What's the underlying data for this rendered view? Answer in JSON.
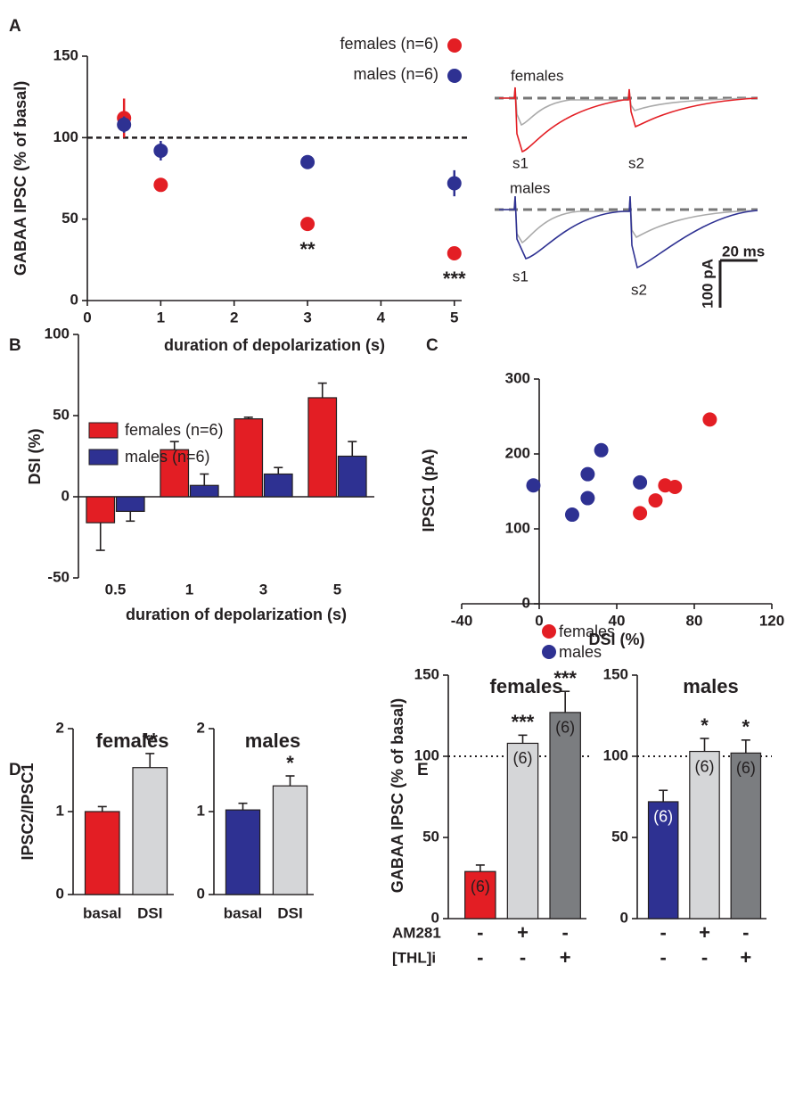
{
  "panels": [
    "A",
    "B",
    "C",
    "D",
    "E"
  ],
  "traces": {
    "groups": [
      "females",
      "males"
    ],
    "stimuli": [
      "s1",
      "s2",
      "s1",
      "s2"
    ],
    "scale_x": "20 ms",
    "scale_y": "100 pA"
  },
  "chart_data": [
    {
      "type": "scatter",
      "x_label": "duration of depolarization (s)",
      "y_label": "GABAA IPSC (% of basal)",
      "xlim": [
        0,
        5.1
      ],
      "xticks": [
        0,
        1,
        2,
        3,
        4,
        5
      ],
      "ylim": [
        0,
        150
      ],
      "yticks": [
        0,
        50,
        100,
        150
      ],
      "reference_line": 100,
      "reference_style": "dashed",
      "legend": "top",
      "series": [
        {
          "name": "females (n=6)",
          "color": "#e31e24",
          "x": [
            0.5,
            1,
            3,
            5
          ],
          "values": [
            112,
            71,
            47,
            29
          ],
          "errors": [
            12,
            3,
            3,
            3
          ]
        },
        {
          "name": "males (n=6)",
          "color": "#2e3192",
          "x": [
            0.5,
            1,
            3,
            5
          ],
          "values": [
            108,
            92,
            85,
            72
          ],
          "errors": [
            5,
            6,
            2,
            8
          ]
        }
      ],
      "annotations": [
        {
          "series": 0,
          "index": 2,
          "text": "**"
        },
        {
          "series": 0,
          "index": 3,
          "text": "***"
        }
      ]
    },
    {
      "type": "bar",
      "x_label": "duration of depolarization (s)",
      "y_label": "DSI (%)",
      "categories": [
        "0.5",
        "1",
        "3",
        "5"
      ],
      "ylim": [
        -50,
        100
      ],
      "yticks": [
        -50,
        0,
        50,
        100
      ],
      "legend": "upper left",
      "series": [
        {
          "name": "females (n=6)",
          "color": "#e31e24",
          "values": [
            -16,
            29,
            48,
            61
          ],
          "errors": [
            17,
            5,
            1,
            9
          ]
        },
        {
          "name": "males (n=6)",
          "color": "#2e3192",
          "values": [
            -9,
            7,
            14,
            25
          ],
          "errors": [
            6,
            7,
            4,
            9
          ]
        }
      ]
    },
    {
      "type": "scatter",
      "x_label": "DSI (%)",
      "y_label": "IPSC1 (pA)",
      "xlim": [
        -40,
        120
      ],
      "xticks": [
        -40,
        0,
        40,
        80,
        120
      ],
      "ylim": [
        0,
        300
      ],
      "yticks": [
        0,
        100,
        200,
        300
      ],
      "legend": "lower left",
      "series": [
        {
          "name": "females",
          "color": "#e31e24",
          "x": [
            88,
            65,
            70,
            60,
            52
          ],
          "values": [
            246,
            158,
            156,
            138,
            121
          ]
        },
        {
          "name": "males",
          "color": "#2e3192",
          "x": [
            -3,
            32,
            25,
            52,
            25,
            17
          ],
          "values": [
            158,
            205,
            173,
            162,
            141,
            119
          ]
        }
      ]
    },
    {
      "type": "bar",
      "title": "females",
      "y_label": "IPSC2/IPSC1",
      "categories": [
        "basal",
        "DSI"
      ],
      "values": [
        1.0,
        1.53
      ],
      "errors": [
        0.06,
        0.17
      ],
      "colors": [
        "#e31e24",
        "#d5d6d8"
      ],
      "ylim": [
        0,
        2
      ],
      "yticks": [
        0,
        1,
        2
      ],
      "annotations": [
        {
          "index": 1,
          "text": "**"
        }
      ]
    },
    {
      "type": "bar",
      "title": "males",
      "categories": [
        "basal",
        "DSI"
      ],
      "values": [
        1.02,
        1.31
      ],
      "errors": [
        0.08,
        0.12
      ],
      "colors": [
        "#2e3192",
        "#d5d6d8"
      ],
      "ylim": [
        0,
        2
      ],
      "yticks": [
        0,
        1,
        2
      ],
      "annotations": [
        {
          "index": 1,
          "text": "*"
        }
      ]
    },
    {
      "type": "bar",
      "title": "females",
      "y_label": "GABAA IPSC (% of basal)",
      "values": [
        29,
        108,
        127
      ],
      "errors": [
        4,
        5,
        13
      ],
      "colors": [
        "#e31e24",
        "#d5d6d8",
        "#7b7d80"
      ],
      "n_labels": [
        "(6)",
        "(6)",
        "(6)"
      ],
      "ylim": [
        0,
        150
      ],
      "yticks": [
        0,
        50,
        100,
        150
      ],
      "reference_line": 100,
      "reference_style": "dotted",
      "annotations": [
        {
          "index": 1,
          "text": "***"
        },
        {
          "index": 2,
          "text": "***"
        }
      ],
      "condition_rows": [
        {
          "name": "AM281",
          "signs": [
            "-",
            "+",
            "-"
          ]
        },
        {
          "name": "[THL]i",
          "signs": [
            "-",
            "-",
            "+"
          ]
        }
      ]
    },
    {
      "type": "bar",
      "title": "males",
      "values": [
        72,
        103,
        102
      ],
      "errors": [
        7,
        8,
        8
      ],
      "colors": [
        "#2e3192",
        "#d5d6d8",
        "#7b7d80"
      ],
      "n_labels": [
        "(6)",
        "(6)",
        "(6)"
      ],
      "ylim": [
        0,
        150
      ],
      "yticks": [
        0,
        50,
        100,
        150
      ],
      "reference_line": 100,
      "reference_style": "dotted",
      "annotations": [
        {
          "index": 1,
          "text": "*"
        },
        {
          "index": 2,
          "text": "*"
        }
      ],
      "condition_rows": [
        {
          "signs": [
            "-",
            "+",
            "-"
          ]
        },
        {
          "signs": [
            "-",
            "-",
            "+"
          ]
        }
      ]
    }
  ]
}
